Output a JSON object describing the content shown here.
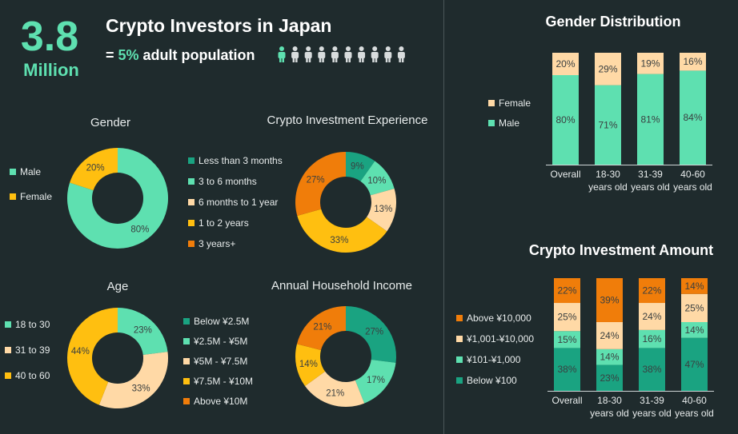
{
  "header": {
    "big_number": "3.8",
    "big_unit": "Million",
    "title": "Crypto Investors in Japan",
    "subtitle_prefix": "= ",
    "subtitle_pct": "5%",
    "subtitle_suffix": " adult population",
    "people_icons": 10,
    "highlighted_people": 1
  },
  "colors": {
    "background": "#1f2b2d",
    "accent": "#5ee0b0",
    "teal_dark": "#1aa381",
    "peach": "#ffd9a6",
    "yellow": "#ffbf10",
    "orange": "#f07d0a"
  },
  "chart_data": [
    {
      "id": "gender",
      "type": "pie",
      "title": "Gender",
      "labels": [
        "Male",
        "Female"
      ],
      "values": [
        80,
        20
      ],
      "value_labels": [
        "80%",
        "20%"
      ],
      "colors": [
        "#5ee0b0",
        "#ffbf10"
      ],
      "legend_position": "left"
    },
    {
      "id": "experience",
      "type": "pie",
      "title": "Crypto Investment Experience",
      "labels": [
        "Less than 3 months",
        "3 to 6 months",
        "6 months to 1 year",
        "1 to 2 years",
        "3 years+"
      ],
      "values": [
        9,
        10,
        13,
        33,
        27
      ],
      "value_labels": [
        "9%",
        "10%",
        "13%",
        "33%",
        "27%"
      ],
      "colors": [
        "#1aa381",
        "#5ee0b0",
        "#ffd9a6",
        "#ffbf10",
        "#f07d0a"
      ],
      "legend_position": "left"
    },
    {
      "id": "age",
      "type": "pie",
      "title": "Age",
      "labels": [
        "18 to 30",
        "31 to 39",
        "40 to 60"
      ],
      "values": [
        23,
        33,
        44
      ],
      "value_labels": [
        "23%",
        "33%",
        "44%"
      ],
      "colors": [
        "#5ee0b0",
        "#ffd9a6",
        "#ffbf10"
      ],
      "legend_position": "left"
    },
    {
      "id": "income",
      "type": "pie",
      "title": "Annual Household Income",
      "labels": [
        "Below ¥2.5M",
        "¥2.5M - ¥5M",
        "¥5M - ¥7.5M",
        "¥7.5M - ¥10M",
        "Above ¥10M"
      ],
      "values": [
        27,
        17,
        21,
        14,
        21
      ],
      "value_labels": [
        "27%",
        "17%",
        "21%",
        "14%",
        "21%"
      ],
      "colors": [
        "#1aa381",
        "#5ee0b0",
        "#ffd9a6",
        "#ffbf10",
        "#f07d0a"
      ],
      "legend_position": "left"
    },
    {
      "id": "gender_distribution",
      "type": "bar",
      "stacked": true,
      "title": "Gender Distribution",
      "categories": [
        "Overall",
        "18-30\nyears old",
        "31-39\nyears old",
        "40-60\nyears old"
      ],
      "series": [
        {
          "name": "Male",
          "values": [
            80,
            71,
            81,
            84
          ],
          "color": "#5ee0b0"
        },
        {
          "name": "Female",
          "values": [
            20,
            29,
            19,
            16
          ],
          "color": "#ffd9a6"
        }
      ],
      "legend_position": "left"
    },
    {
      "id": "investment_amount",
      "type": "bar",
      "stacked": true,
      "title": "Crypto Investment Amount",
      "categories": [
        "Overall",
        "18-30\nyears old",
        "31-39\nyears old",
        "40-60\nyears old"
      ],
      "series": [
        {
          "name": "Below ¥100",
          "values": [
            38,
            23,
            38,
            47
          ],
          "color": "#1aa381"
        },
        {
          "name": "¥101-¥1,000",
          "values": [
            15,
            14,
            16,
            14
          ],
          "color": "#5ee0b0"
        },
        {
          "name": "¥1,001-¥10,000",
          "values": [
            25,
            24,
            24,
            25
          ],
          "color": "#ffd9a6"
        },
        {
          "name": "Above ¥10,000",
          "values": [
            22,
            39,
            22,
            14
          ],
          "color": "#f07d0a"
        }
      ],
      "legend_position": "left"
    }
  ]
}
